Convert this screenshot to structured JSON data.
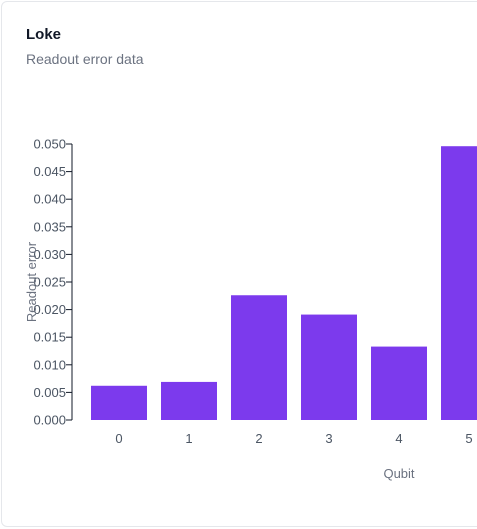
{
  "card": {
    "title": "Loke",
    "subtitle": "Readout error data"
  },
  "colors": {
    "bar": "#7c3aed",
    "axis": "#111827",
    "border": "#e5e7eb"
  },
  "chart_data": {
    "type": "bar",
    "categories": [
      "0",
      "1",
      "2",
      "3",
      "4",
      "5"
    ],
    "values": [
      0.0062,
      0.0069,
      0.0226,
      0.0191,
      0.0133,
      0.0496
    ],
    "xlabel": "Qubit",
    "ylabel": "Readout error",
    "ylim": [
      0,
      0.05
    ],
    "yticks": [
      "0.000",
      "0.005",
      "0.010",
      "0.015",
      "0.020",
      "0.025",
      "0.030",
      "0.035",
      "0.040",
      "0.045",
      "0.050"
    ],
    "grid": false,
    "legend": "none"
  }
}
